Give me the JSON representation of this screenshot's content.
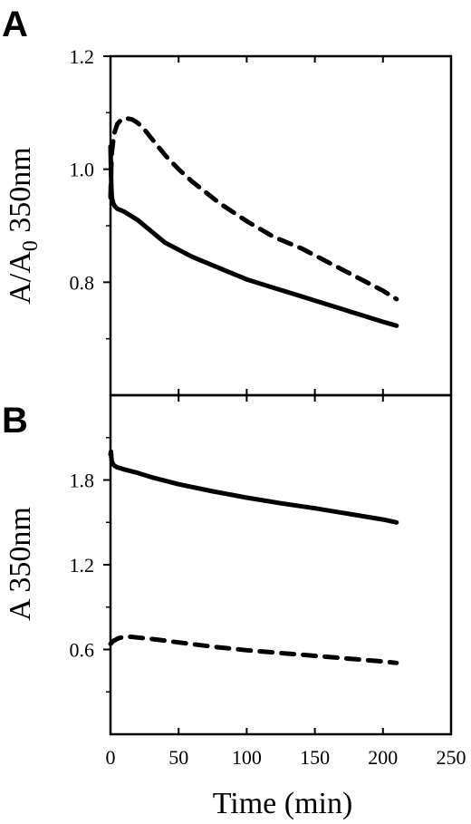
{
  "chart_data": [
    {
      "type": "line",
      "panel_label": "A",
      "ylabel": "A/A",
      "ylabel_sub": "0",
      "ylabel_suffix": " 350nm",
      "xlim": [
        0,
        250
      ],
      "ylim": [
        0.6,
        1.2
      ],
      "y_ticks_labeled": [
        0.8,
        1.0,
        1.2
      ],
      "y_ticks_minor": [
        0.7,
        0.9,
        1.1
      ],
      "grid": false,
      "series": [
        {
          "style": "dashed",
          "x": [
            0,
            0.5,
            1,
            2,
            3,
            5,
            8,
            12,
            16,
            20,
            25,
            30,
            40,
            50,
            60,
            80,
            100,
            120,
            140,
            160,
            180,
            200,
            210
          ],
          "y": [
            0.95,
            1.0,
            1.03,
            1.05,
            1.065,
            1.08,
            1.088,
            1.09,
            1.088,
            1.082,
            1.07,
            1.055,
            1.025,
            1.0,
            0.978,
            0.94,
            0.908,
            0.88,
            0.86,
            0.835,
            0.81,
            0.785,
            0.77
          ]
        },
        {
          "style": "solid",
          "x": [
            0,
            0.3,
            0.6,
            1,
            2,
            3,
            5,
            10,
            20,
            30,
            40,
            60,
            80,
            100,
            120,
            140,
            160,
            180,
            200,
            210
          ],
          "y": [
            1.04,
            1.0,
            0.97,
            0.95,
            0.94,
            0.935,
            0.93,
            0.925,
            0.91,
            0.89,
            0.87,
            0.845,
            0.825,
            0.805,
            0.79,
            0.775,
            0.76,
            0.745,
            0.73,
            0.723
          ]
        }
      ]
    },
    {
      "type": "line",
      "panel_label": "B",
      "ylabel": "A  350nm",
      "xlabel": "Time (min)",
      "xlim": [
        0,
        250
      ],
      "x_ticks": [
        0,
        50,
        100,
        150,
        200,
        250
      ],
      "ylim": [
        0,
        2.4
      ],
      "y_ticks_labeled": [
        0.6,
        1.2,
        1.8
      ],
      "y_ticks_minor": [
        0.3,
        0.9,
        1.5,
        2.1
      ],
      "grid": false,
      "series": [
        {
          "style": "solid",
          "x": [
            0,
            0.3,
            0.6,
            1,
            2,
            3,
            5,
            10,
            20,
            30,
            50,
            75,
            100,
            125,
            150,
            175,
            200,
            210
          ],
          "y": [
            1.98,
            2.0,
            1.96,
            1.93,
            1.91,
            1.9,
            1.89,
            1.875,
            1.85,
            1.82,
            1.77,
            1.72,
            1.675,
            1.635,
            1.6,
            1.56,
            1.52,
            1.5
          ]
        },
        {
          "style": "dashed",
          "x": [
            0,
            1,
            2,
            4,
            6,
            10,
            15,
            20,
            30,
            50,
            75,
            100,
            125,
            150,
            175,
            200,
            210
          ],
          "y": [
            0.64,
            0.65,
            0.66,
            0.67,
            0.68,
            0.69,
            0.69,
            0.685,
            0.675,
            0.65,
            0.62,
            0.595,
            0.575,
            0.555,
            0.535,
            0.515,
            0.505
          ]
        }
      ]
    }
  ]
}
